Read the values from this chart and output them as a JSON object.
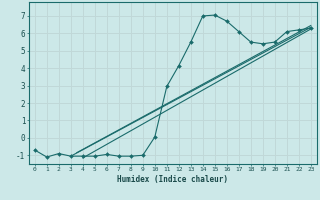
{
  "xlabel": "Humidex (Indice chaleur)",
  "background_color": "#cce8e8",
  "grid_color": "#c0d8d8",
  "line_color": "#1a6b6b",
  "xlim": [
    -0.5,
    23.5
  ],
  "ylim": [
    -1.5,
    7.8
  ],
  "xticks": [
    0,
    1,
    2,
    3,
    4,
    5,
    6,
    7,
    8,
    9,
    10,
    11,
    12,
    13,
    14,
    15,
    16,
    17,
    18,
    19,
    20,
    21,
    22,
    23
  ],
  "yticks": [
    -1,
    0,
    1,
    2,
    3,
    4,
    5,
    6,
    7
  ],
  "curve_x": [
    0,
    1,
    2,
    3,
    4,
    5,
    6,
    7,
    8,
    9,
    10,
    11,
    12,
    13,
    14,
    15,
    16,
    17,
    18,
    19,
    20,
    21,
    22,
    23
  ],
  "curve_y": [
    -0.7,
    -1.1,
    -0.9,
    -1.05,
    -1.05,
    -1.05,
    -0.95,
    -1.05,
    -1.05,
    -1.0,
    0.05,
    2.95,
    4.15,
    5.5,
    7.0,
    7.05,
    6.7,
    6.1,
    5.5,
    5.4,
    5.5,
    6.1,
    6.2,
    6.3
  ],
  "line1_x": [
    3.0,
    23
  ],
  "line1_y": [
    -1.05,
    6.35
  ],
  "line2_x": [
    3.5,
    23
  ],
  "line2_y": [
    -0.85,
    6.45
  ],
  "line3_x": [
    4.0,
    23
  ],
  "line3_y": [
    -1.15,
    6.25
  ]
}
